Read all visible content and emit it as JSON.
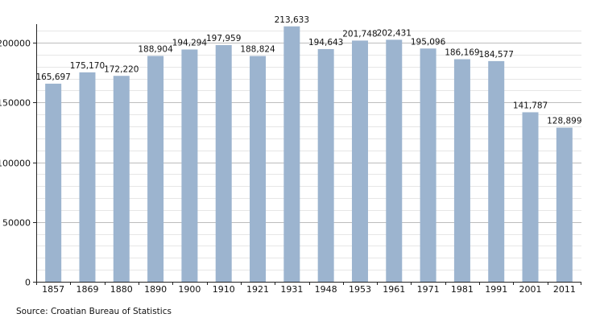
{
  "chart_data": {
    "type": "bar",
    "categories": [
      "1857",
      "1869",
      "1880",
      "1890",
      "1900",
      "1910",
      "1921",
      "1931",
      "1948",
      "1953",
      "1961",
      "1971",
      "1981",
      "1991",
      "2001",
      "2011"
    ],
    "values": [
      165697,
      175170,
      172220,
      188904,
      194294,
      197959,
      188824,
      213633,
      194643,
      201748,
      202431,
      195096,
      186169,
      184577,
      141787,
      128899
    ],
    "data_labels": [
      "165,697",
      "175,170",
      "172,220",
      "188,904",
      "194,294",
      "197,959",
      "188,824",
      "213,633",
      "194,643",
      "201,748",
      "202,431",
      "195,096",
      "186,169",
      "184,577",
      "141,787",
      "128,899"
    ],
    "title": "",
    "xlabel": "",
    "ylabel": "",
    "ylim": [
      0,
      200000
    ],
    "yticks": [
      "0",
      "50000",
      "100000",
      "150000",
      "200000"
    ],
    "grid": true,
    "bar_color": "#9cb4cf",
    "grid_color": "#c8c8c8",
    "axis_color": "#222222"
  },
  "source": "Source: Croatian Bureau of Statistics"
}
